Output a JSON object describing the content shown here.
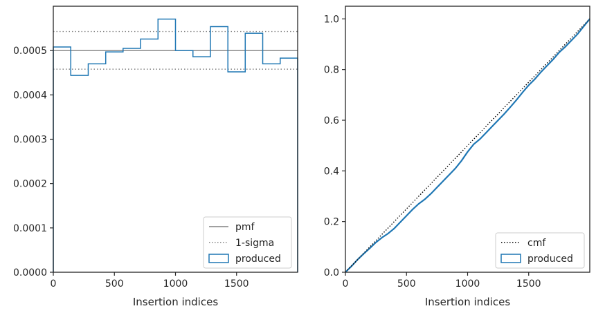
{
  "chart_data": [
    {
      "type": "step",
      "xlabel": "Insertion indices",
      "ylabel": "",
      "xlim": [
        0,
        2000
      ],
      "ylim": [
        0,
        0.0006
      ],
      "x_ticks": [
        "0",
        "500",
        "1000",
        "1500"
      ],
      "y_ticks": [
        "0.0000",
        "0.0001",
        "0.0002",
        "0.0003",
        "0.0004",
        "0.0005"
      ],
      "grid": false,
      "legend_position": "lower right",
      "series": [
        {
          "name": "pmf",
          "style": "solid",
          "color": "#808080",
          "y": 0.0005
        },
        {
          "name": "1-sigma",
          "style": "dotted",
          "color": "#808080",
          "y_values": [
            0.000543,
            0.000458
          ]
        },
        {
          "name": "produced",
          "style": "step",
          "color": "#1f77b4",
          "bin_edges": [
            0,
            143,
            286,
            429,
            571,
            714,
            857,
            1000,
            1143,
            1286,
            1429,
            1571,
            1714,
            1857,
            2000
          ],
          "values": [
            0.000508,
            0.000444,
            0.00047,
            0.000497,
            0.000505,
            0.000526,
            0.000571,
            0.0005,
            0.000486,
            0.000554,
            0.000452,
            0.000539,
            0.00047,
            0.000483
          ]
        }
      ]
    },
    {
      "type": "line",
      "xlabel": "Insertion indices",
      "ylabel": "",
      "xlim": [
        0,
        2000
      ],
      "ylim": [
        0,
        1.05
      ],
      "x_ticks": [
        "0",
        "500",
        "1000",
        "1500"
      ],
      "y_ticks": [
        "0.0",
        "0.2",
        "0.4",
        "0.6",
        "0.8",
        "1.0"
      ],
      "grid": false,
      "legend_position": "lower right",
      "series": [
        {
          "name": "cmf",
          "style": "dotted",
          "color": "#000000",
          "x": [
            0,
            2000
          ],
          "y": [
            0,
            1
          ]
        },
        {
          "name": "produced",
          "style": "solid",
          "color": "#1f77b4",
          "x": [
            0,
            50,
            100,
            150,
            200,
            250,
            300,
            350,
            400,
            450,
            500,
            550,
            600,
            650,
            700,
            750,
            800,
            850,
            900,
            950,
            1000,
            1050,
            1100,
            1150,
            1200,
            1250,
            1300,
            1350,
            1400,
            1450,
            1500,
            1550,
            1600,
            1650,
            1700,
            1750,
            1800,
            1850,
            1900,
            1950,
            2000
          ],
          "y": [
            0,
            0.024,
            0.05,
            0.073,
            0.095,
            0.118,
            0.137,
            0.153,
            0.173,
            0.198,
            0.223,
            0.248,
            0.27,
            0.288,
            0.31,
            0.335,
            0.36,
            0.385,
            0.41,
            0.44,
            0.475,
            0.505,
            0.525,
            0.55,
            0.575,
            0.6,
            0.625,
            0.652,
            0.68,
            0.71,
            0.738,
            0.762,
            0.79,
            0.815,
            0.84,
            0.868,
            0.89,
            0.915,
            0.94,
            0.97,
            1.0
          ]
        }
      ]
    }
  ]
}
